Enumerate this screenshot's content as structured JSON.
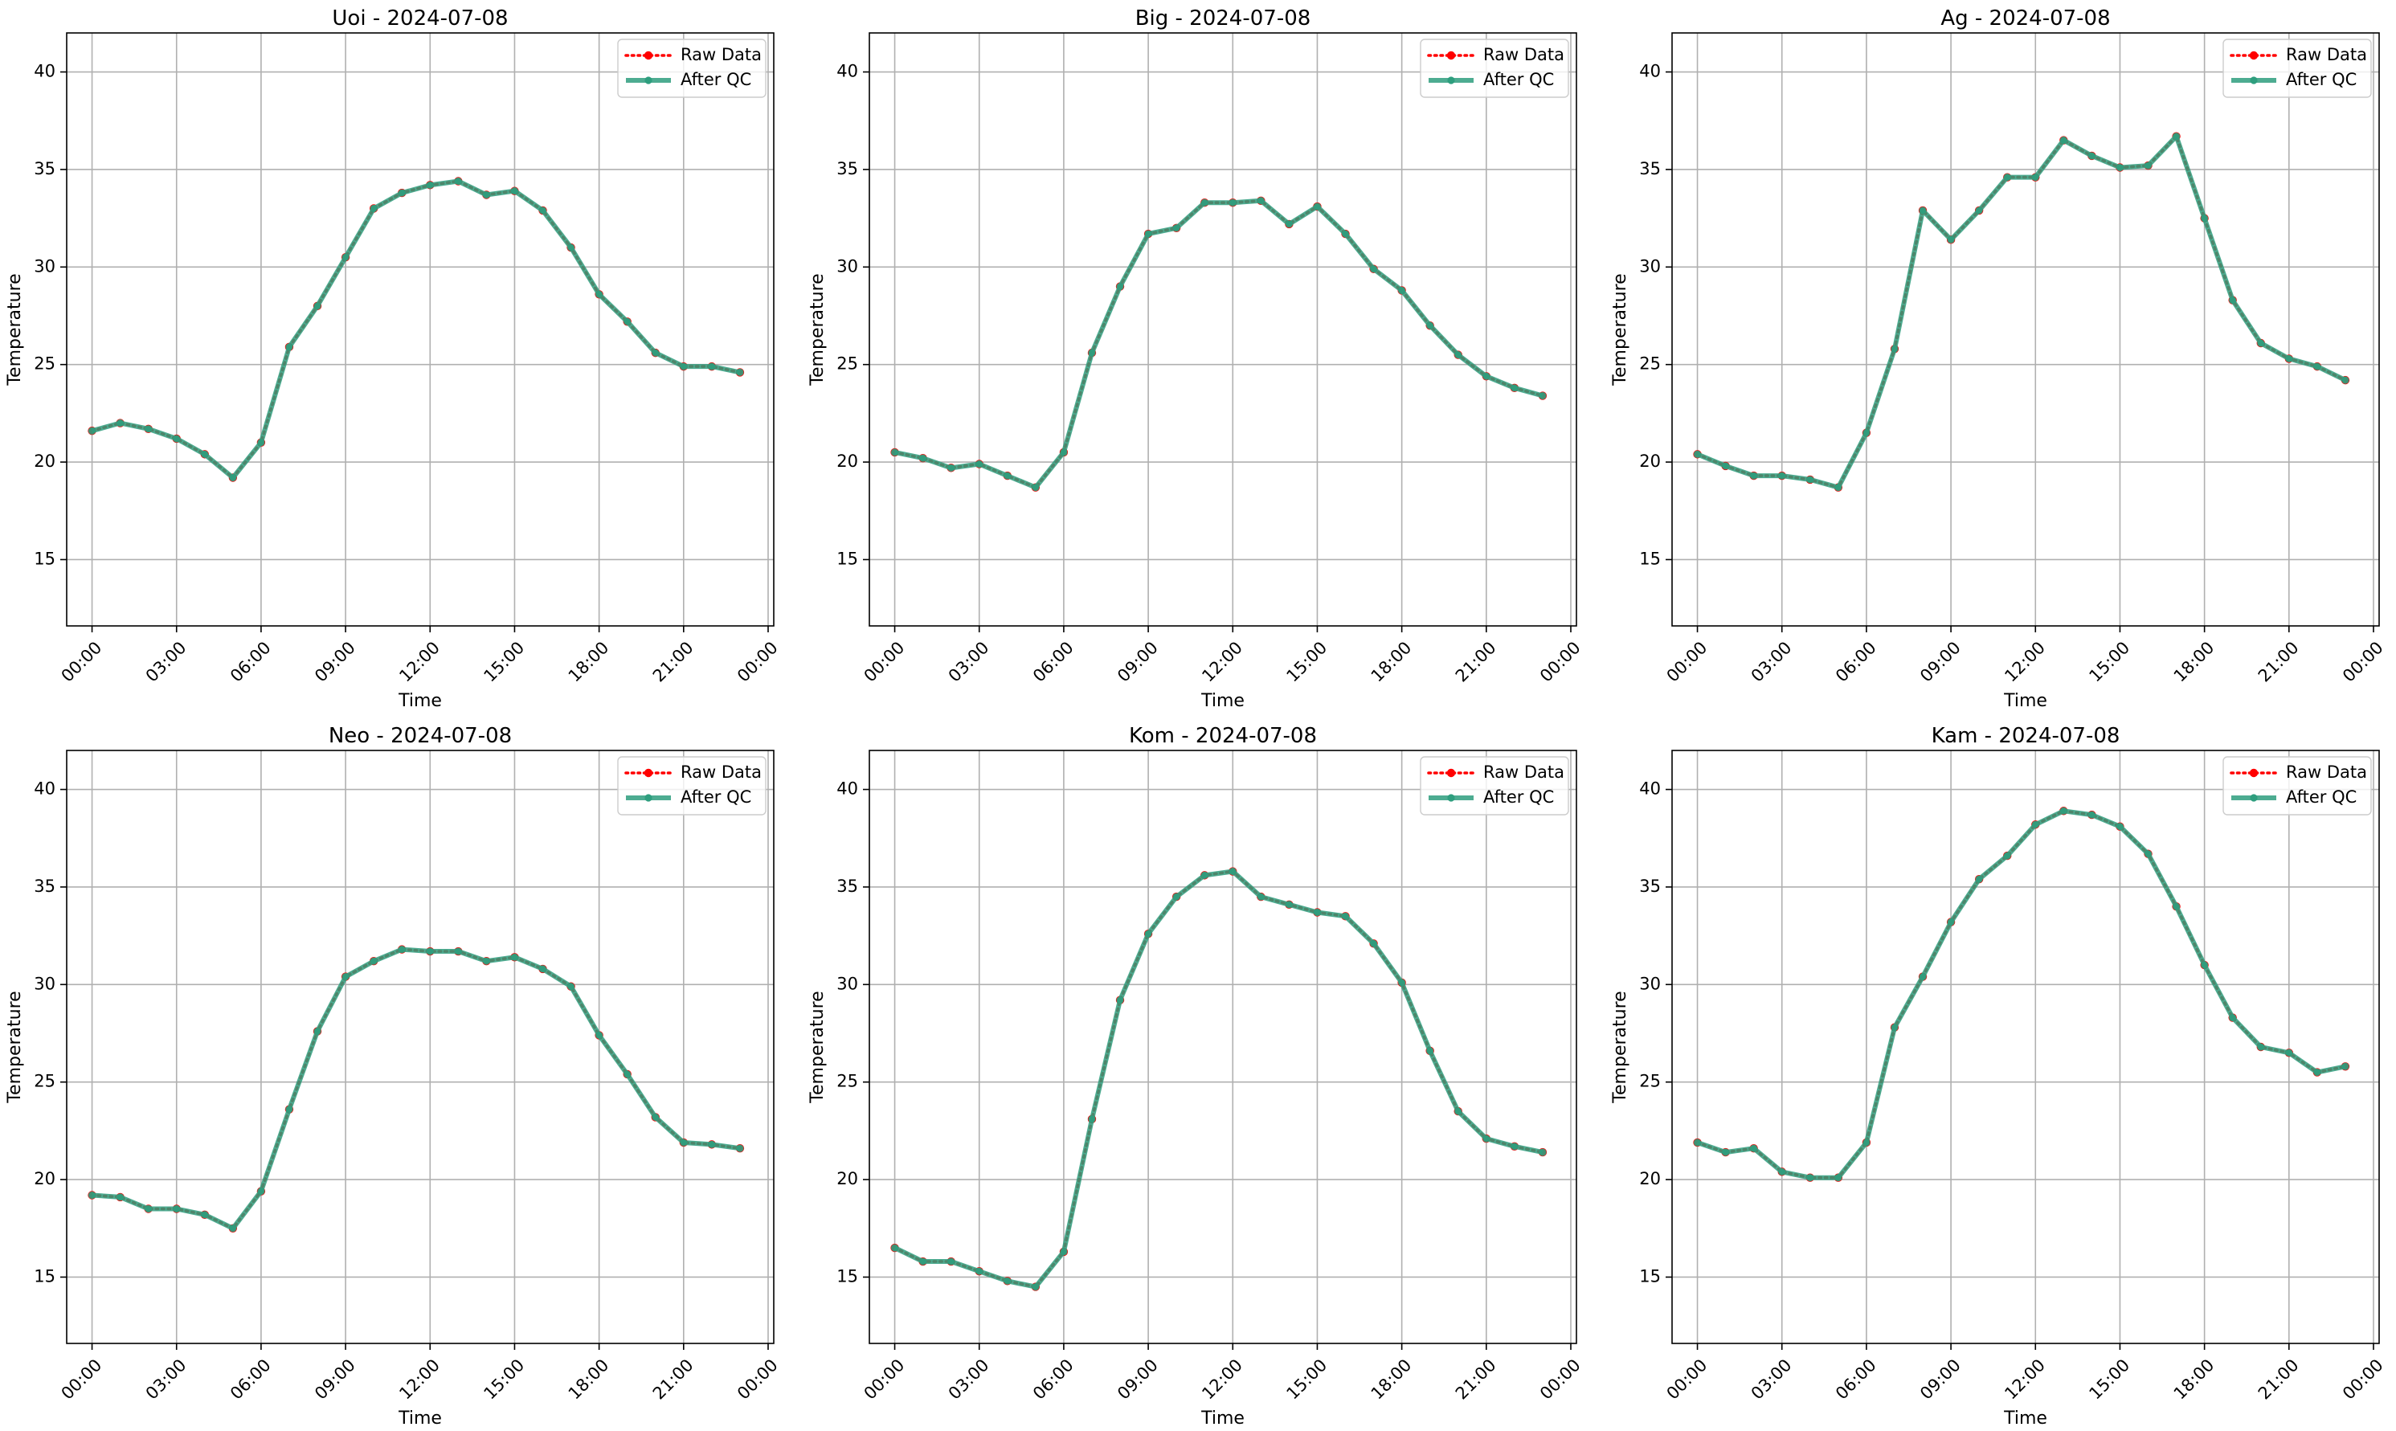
{
  "chart_data": [
    {
      "type": "line",
      "title": "Uoi - 2024-07-08",
      "xlabel": "Time",
      "ylabel": "Temperature",
      "xlim": [
        -0.9,
        24.2
      ],
      "ylim": [
        11.6,
        42.0
      ],
      "x_ticks": [
        0,
        3,
        6,
        9,
        12,
        15,
        18,
        21,
        24
      ],
      "x_tick_labels": [
        "00:00",
        "03:00",
        "06:00",
        "09:00",
        "12:00",
        "15:00",
        "18:00",
        "21:00",
        "00:00"
      ],
      "y_ticks": [
        15,
        20,
        25,
        30,
        35,
        40
      ],
      "y_tick_labels": [
        "15",
        "20",
        "25",
        "30",
        "35",
        "40"
      ],
      "grid": true,
      "legend_position": "upper right",
      "x": [
        0,
        1,
        2,
        3,
        4,
        5,
        6,
        7,
        8,
        9,
        10,
        11,
        12,
        13,
        14,
        15,
        16,
        17,
        18,
        19,
        20,
        21,
        22,
        23
      ],
      "series": [
        {
          "name": "Raw Data",
          "color": "#ff0000",
          "style": "dotted",
          "marker": "circle",
          "values": [
            21.6,
            22.0,
            21.7,
            21.2,
            20.4,
            19.2,
            21.0,
            25.9,
            28.0,
            30.5,
            33.0,
            33.8,
            34.2,
            34.4,
            33.7,
            33.9,
            32.9,
            31.0,
            28.6,
            27.2,
            25.6,
            24.9,
            24.9,
            24.6
          ]
        },
        {
          "name": "After QC",
          "color": "#2e9e7e",
          "style": "solid",
          "marker": "circle",
          "values": [
            21.6,
            22.0,
            21.7,
            21.2,
            20.4,
            19.2,
            21.0,
            25.9,
            28.0,
            30.5,
            33.0,
            33.8,
            34.2,
            34.4,
            33.7,
            33.9,
            32.9,
            31.0,
            28.6,
            27.2,
            25.6,
            24.9,
            24.9,
            24.6
          ]
        }
      ]
    },
    {
      "type": "line",
      "title": "Big - 2024-07-08",
      "xlabel": "Time",
      "ylabel": "Temperature",
      "xlim": [
        -0.9,
        24.2
      ],
      "ylim": [
        11.6,
        42.0
      ],
      "x_ticks": [
        0,
        3,
        6,
        9,
        12,
        15,
        18,
        21,
        24
      ],
      "x_tick_labels": [
        "00:00",
        "03:00",
        "06:00",
        "09:00",
        "12:00",
        "15:00",
        "18:00",
        "21:00",
        "00:00"
      ],
      "y_ticks": [
        15,
        20,
        25,
        30,
        35,
        40
      ],
      "y_tick_labels": [
        "15",
        "20",
        "25",
        "30",
        "35",
        "40"
      ],
      "grid": true,
      "legend_position": "upper right",
      "x": [
        0,
        1,
        2,
        3,
        4,
        5,
        6,
        7,
        8,
        9,
        10,
        11,
        12,
        13,
        14,
        15,
        16,
        17,
        18,
        19,
        20,
        21,
        22,
        23
      ],
      "series": [
        {
          "name": "Raw Data",
          "color": "#ff0000",
          "style": "dotted",
          "marker": "circle",
          "values": [
            20.5,
            20.2,
            19.7,
            19.9,
            19.3,
            18.7,
            20.5,
            25.6,
            29.0,
            31.7,
            32.0,
            33.3,
            33.3,
            33.4,
            32.2,
            33.1,
            31.7,
            29.9,
            28.8,
            27.0,
            25.5,
            24.4,
            23.8,
            23.4
          ]
        },
        {
          "name": "After QC",
          "color": "#2e9e7e",
          "style": "solid",
          "marker": "circle",
          "values": [
            20.5,
            20.2,
            19.7,
            19.9,
            19.3,
            18.7,
            20.5,
            25.6,
            29.0,
            31.7,
            32.0,
            33.3,
            33.3,
            33.4,
            32.2,
            33.1,
            31.7,
            29.9,
            28.8,
            27.0,
            25.5,
            24.4,
            23.8,
            23.4
          ]
        }
      ]
    },
    {
      "type": "line",
      "title": "Ag - 2024-07-08",
      "xlabel": "Time",
      "ylabel": "Temperature",
      "xlim": [
        -0.9,
        24.2
      ],
      "ylim": [
        11.6,
        42.0
      ],
      "x_ticks": [
        0,
        3,
        6,
        9,
        12,
        15,
        18,
        21,
        24
      ],
      "x_tick_labels": [
        "00:00",
        "03:00",
        "06:00",
        "09:00",
        "12:00",
        "15:00",
        "18:00",
        "21:00",
        "00:00"
      ],
      "y_ticks": [
        15,
        20,
        25,
        30,
        35,
        40
      ],
      "y_tick_labels": [
        "15",
        "20",
        "25",
        "30",
        "35",
        "40"
      ],
      "grid": true,
      "legend_position": "upper right",
      "x": [
        0,
        1,
        2,
        3,
        4,
        5,
        6,
        7,
        8,
        9,
        10,
        11,
        12,
        13,
        14,
        15,
        16,
        17,
        18,
        19,
        20,
        21,
        22,
        23
      ],
      "series": [
        {
          "name": "Raw Data",
          "color": "#ff0000",
          "style": "dotted",
          "marker": "circle",
          "values": [
            20.4,
            19.8,
            19.3,
            19.3,
            19.1,
            18.7,
            21.5,
            25.8,
            32.9,
            31.4,
            32.9,
            34.6,
            34.6,
            36.5,
            35.7,
            35.1,
            35.2,
            36.7,
            32.5,
            28.3,
            26.1,
            25.3,
            24.9,
            24.2
          ]
        },
        {
          "name": "After QC",
          "color": "#2e9e7e",
          "style": "solid",
          "marker": "circle",
          "values": [
            20.4,
            19.8,
            19.3,
            19.3,
            19.1,
            18.7,
            21.5,
            25.8,
            32.9,
            31.4,
            32.9,
            34.6,
            34.6,
            36.5,
            35.7,
            35.1,
            35.2,
            36.7,
            32.5,
            28.3,
            26.1,
            25.3,
            24.9,
            24.2
          ]
        }
      ]
    },
    {
      "type": "line",
      "title": "Neo - 2024-07-08",
      "xlabel": "Time",
      "ylabel": "Temperature",
      "xlim": [
        -0.9,
        24.2
      ],
      "ylim": [
        11.6,
        42.0
      ],
      "x_ticks": [
        0,
        3,
        6,
        9,
        12,
        15,
        18,
        21,
        24
      ],
      "x_tick_labels": [
        "00:00",
        "03:00",
        "06:00",
        "09:00",
        "12:00",
        "15:00",
        "18:00",
        "21:00",
        "00:00"
      ],
      "y_ticks": [
        15,
        20,
        25,
        30,
        35,
        40
      ],
      "y_tick_labels": [
        "15",
        "20",
        "25",
        "30",
        "35",
        "40"
      ],
      "grid": true,
      "legend_position": "upper right",
      "x": [
        0,
        1,
        2,
        3,
        4,
        5,
        6,
        7,
        8,
        9,
        10,
        11,
        12,
        13,
        14,
        15,
        16,
        17,
        18,
        19,
        20,
        21,
        22,
        23
      ],
      "series": [
        {
          "name": "Raw Data",
          "color": "#ff0000",
          "style": "dotted",
          "marker": "circle",
          "values": [
            19.2,
            19.1,
            18.5,
            18.5,
            18.2,
            17.5,
            19.4,
            23.6,
            27.6,
            30.4,
            31.2,
            31.8,
            31.7,
            31.7,
            31.2,
            31.4,
            30.8,
            29.9,
            27.4,
            25.4,
            23.2,
            21.9,
            21.8,
            21.6
          ]
        },
        {
          "name": "After QC",
          "color": "#2e9e7e",
          "style": "solid",
          "marker": "circle",
          "values": [
            19.2,
            19.1,
            18.5,
            18.5,
            18.2,
            17.5,
            19.4,
            23.6,
            27.6,
            30.4,
            31.2,
            31.8,
            31.7,
            31.7,
            31.2,
            31.4,
            30.8,
            29.9,
            27.4,
            25.4,
            23.2,
            21.9,
            21.8,
            21.6
          ]
        }
      ]
    },
    {
      "type": "line",
      "title": "Kom - 2024-07-08",
      "xlabel": "Time",
      "ylabel": "Temperature",
      "xlim": [
        -0.9,
        24.2
      ],
      "ylim": [
        11.6,
        42.0
      ],
      "x_ticks": [
        0,
        3,
        6,
        9,
        12,
        15,
        18,
        21,
        24
      ],
      "x_tick_labels": [
        "00:00",
        "03:00",
        "06:00",
        "09:00",
        "12:00",
        "15:00",
        "18:00",
        "21:00",
        "00:00"
      ],
      "y_ticks": [
        15,
        20,
        25,
        30,
        35,
        40
      ],
      "y_tick_labels": [
        "15",
        "20",
        "25",
        "30",
        "35",
        "40"
      ],
      "grid": true,
      "legend_position": "upper right",
      "x": [
        0,
        1,
        2,
        3,
        4,
        5,
        6,
        7,
        8,
        9,
        10,
        11,
        12,
        13,
        14,
        15,
        16,
        17,
        18,
        19,
        20,
        21,
        22,
        23
      ],
      "series": [
        {
          "name": "Raw Data",
          "color": "#ff0000",
          "style": "dotted",
          "marker": "circle",
          "values": [
            16.5,
            15.8,
            15.8,
            15.3,
            14.8,
            14.5,
            16.3,
            23.1,
            29.2,
            32.6,
            34.5,
            35.6,
            35.8,
            34.5,
            34.1,
            33.7,
            33.5,
            32.1,
            30.1,
            26.6,
            23.5,
            22.1,
            21.7,
            21.4
          ]
        },
        {
          "name": "After QC",
          "color": "#2e9e7e",
          "style": "solid",
          "marker": "circle",
          "values": [
            16.5,
            15.8,
            15.8,
            15.3,
            14.8,
            14.5,
            16.3,
            23.1,
            29.2,
            32.6,
            34.5,
            35.6,
            35.8,
            34.5,
            34.1,
            33.7,
            33.5,
            32.1,
            30.1,
            26.6,
            23.5,
            22.1,
            21.7,
            21.4
          ]
        }
      ]
    },
    {
      "type": "line",
      "title": "Kam - 2024-07-08",
      "xlabel": "Time",
      "ylabel": "Temperature",
      "xlim": [
        -0.9,
        24.2
      ],
      "ylim": [
        11.6,
        42.0
      ],
      "x_ticks": [
        0,
        3,
        6,
        9,
        12,
        15,
        18,
        21,
        24
      ],
      "x_tick_labels": [
        "00:00",
        "03:00",
        "06:00",
        "09:00",
        "12:00",
        "15:00",
        "18:00",
        "21:00",
        "00:00"
      ],
      "y_ticks": [
        15,
        20,
        25,
        30,
        35,
        40
      ],
      "y_tick_labels": [
        "15",
        "20",
        "25",
        "30",
        "35",
        "40"
      ],
      "grid": true,
      "legend_position": "upper right",
      "x": [
        0,
        1,
        2,
        3,
        4,
        5,
        6,
        7,
        8,
        9,
        10,
        11,
        12,
        13,
        14,
        15,
        16,
        17,
        18,
        19,
        20,
        21,
        22,
        23
      ],
      "series": [
        {
          "name": "Raw Data",
          "color": "#ff0000",
          "style": "dotted",
          "marker": "circle",
          "values": [
            21.9,
            21.4,
            21.6,
            20.4,
            20.1,
            20.1,
            21.9,
            27.8,
            30.4,
            33.2,
            35.4,
            36.6,
            38.2,
            38.9,
            38.7,
            38.1,
            36.7,
            34.0,
            31.0,
            28.3,
            26.8,
            26.5,
            25.5,
            25.8
          ]
        },
        {
          "name": "After QC",
          "color": "#2e9e7e",
          "style": "solid",
          "marker": "circle",
          "values": [
            21.9,
            21.4,
            21.6,
            20.4,
            20.1,
            20.1,
            21.9,
            27.8,
            30.4,
            33.2,
            35.4,
            36.6,
            38.2,
            38.9,
            38.7,
            38.1,
            36.7,
            34.0,
            31.0,
            28.3,
            26.8,
            26.5,
            25.5,
            25.8
          ]
        }
      ]
    }
  ]
}
